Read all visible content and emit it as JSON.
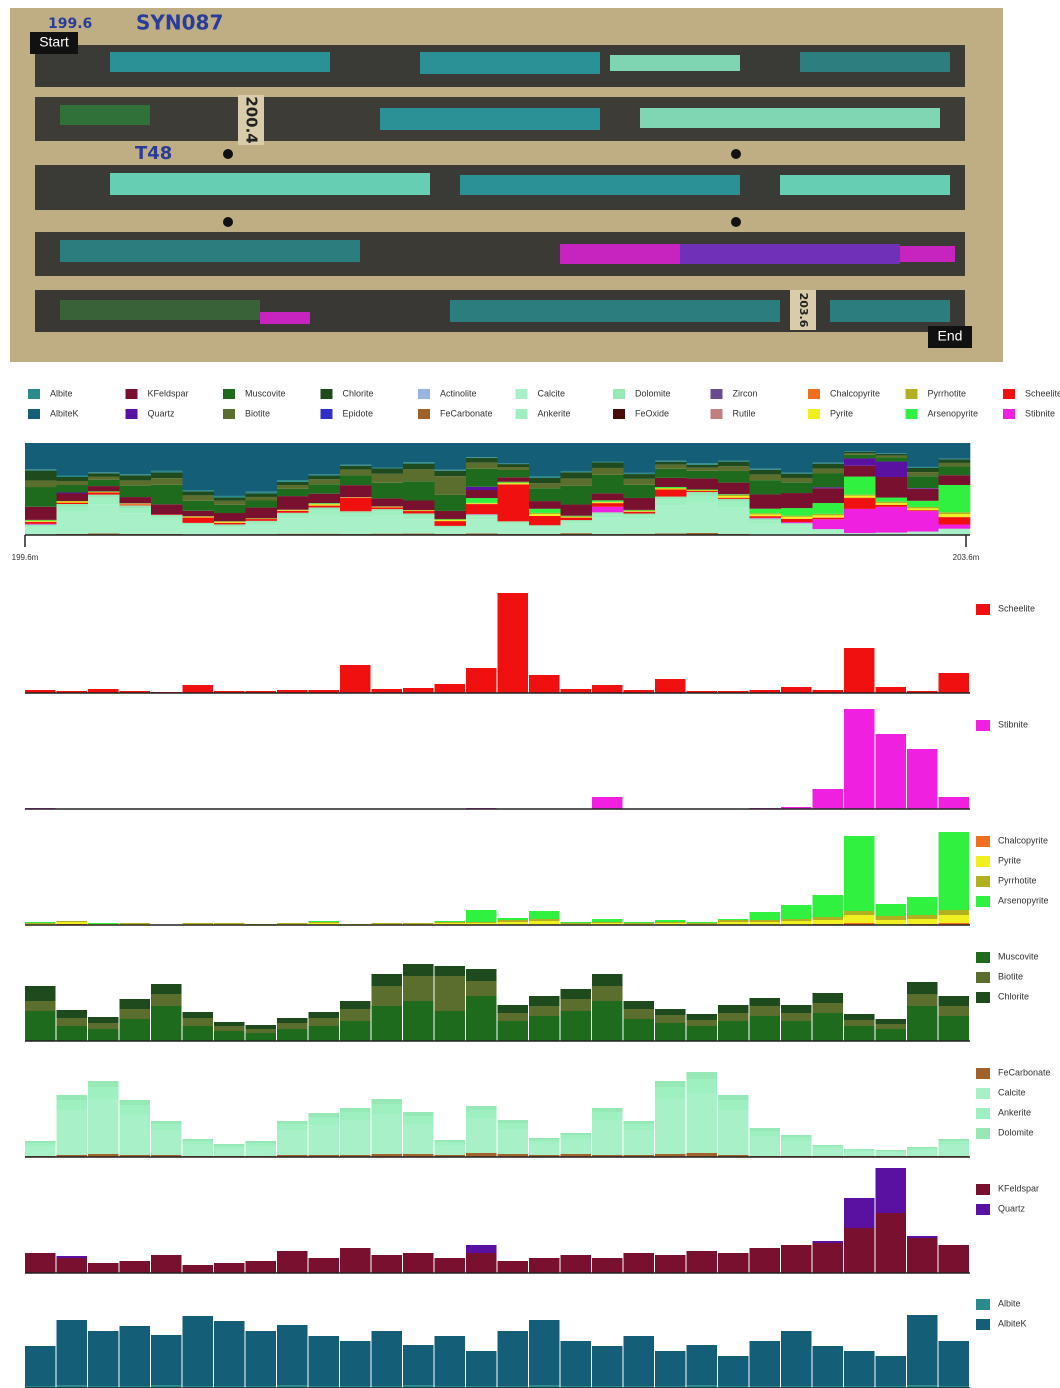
{
  "tray": {
    "start": "Start",
    "end": "End",
    "box_top": "199.6",
    "hole": "SYN087",
    "row_mark": "200.4",
    "tray_no": "T48",
    "box_end": "203.6"
  },
  "chart_data": [
    {
      "type": "stacked-composition",
      "x_start": "199.6m",
      "x_end": "203.6m",
      "legend": [
        {
          "name": "Albite",
          "color": "#2a8a8c"
        },
        {
          "name": "AlbiteK",
          "color": "#145e78"
        },
        {
          "name": "KFeldspar",
          "color": "#7a1030"
        },
        {
          "name": "Quartz",
          "color": "#5a10a0"
        },
        {
          "name": "Muscovite",
          "color": "#1e6b1e"
        },
        {
          "name": "Biotite",
          "color": "#5c6e2e"
        },
        {
          "name": "Chlorite",
          "color": "#1e4a1e"
        },
        {
          "name": "Epidote",
          "color": "#3030c8"
        },
        {
          "name": "Actinolite",
          "color": "#99b4e0"
        },
        {
          "name": "FeCarbonate",
          "color": "#a0622a"
        },
        {
          "name": "Calcite",
          "color": "#a8f0c8"
        },
        {
          "name": "Ankerite",
          "color": "#9ff0c0"
        },
        {
          "name": "Dolomite",
          "color": "#96e8b6"
        },
        {
          "name": "FeOxide",
          "color": "#4a0a0a"
        },
        {
          "name": "Zircon",
          "color": "#6a4a90"
        },
        {
          "name": "Rutile",
          "color": "#c08080"
        },
        {
          "name": "Chalcopyrite",
          "color": "#f07020"
        },
        {
          "name": "Pyrite",
          "color": "#f0f020"
        },
        {
          "name": "Pyrrhotite",
          "color": "#b0b020"
        },
        {
          "name": "Arsenopyrite",
          "color": "#30f040"
        },
        {
          "name": "Scheelite",
          "color": "#f01010"
        },
        {
          "name": "Stibnite",
          "color": "#f020e0"
        }
      ]
    },
    {
      "type": "bar",
      "ylim": [
        0,
        100
      ],
      "series": [
        {
          "name": "Scheelite",
          "color": "#f01010",
          "values": [
            3,
            2,
            4,
            2,
            1,
            8,
            2,
            2,
            3,
            3,
            28,
            4,
            5,
            9,
            25,
            100,
            18,
            4,
            8,
            3,
            14,
            2,
            2,
            3,
            6,
            3,
            45,
            6,
            2,
            20
          ]
        }
      ]
    },
    {
      "type": "bar",
      "ylim": [
        0,
        100
      ],
      "series": [
        {
          "name": "Stibnite",
          "color": "#f020e0",
          "values": [
            1,
            0,
            0,
            0,
            0,
            0,
            0,
            0,
            0,
            0,
            0,
            0,
            0,
            0,
            1,
            0,
            0,
            0,
            12,
            0,
            0,
            0,
            0,
            1,
            2,
            20,
            100,
            75,
            60,
            12
          ]
        }
      ]
    },
    {
      "type": "bar",
      "ylim": [
        0,
        100
      ],
      "series": [
        {
          "name": "Chalcopyrite",
          "color": "#f07020",
          "values": [
            0,
            1,
            0,
            0,
            0,
            0,
            0,
            0,
            0,
            0,
            0,
            0,
            0,
            0,
            0,
            0,
            0,
            0,
            0,
            0,
            0,
            0,
            0,
            0,
            0,
            1,
            2,
            0,
            1,
            2
          ]
        },
        {
          "name": "Pyrite",
          "color": "#f0f020",
          "values": [
            1,
            2,
            1,
            1,
            0,
            1,
            1,
            0,
            1,
            2,
            1,
            1,
            1,
            2,
            2,
            3,
            4,
            1,
            2,
            1,
            2,
            1,
            3,
            3,
            4,
            4,
            8,
            5,
            5,
            8
          ]
        },
        {
          "name": "Pyrrhotite",
          "color": "#b0b020",
          "values": [
            1,
            1,
            0,
            1,
            0,
            1,
            1,
            1,
            1,
            1,
            0,
            1,
            1,
            1,
            1,
            2,
            2,
            1,
            1,
            1,
            1,
            1,
            2,
            2,
            2,
            3,
            4,
            4,
            4,
            5
          ]
        },
        {
          "name": "Arsenopyrite",
          "color": "#30f040",
          "values": [
            1,
            0,
            1,
            0,
            0,
            0,
            0,
            0,
            0,
            1,
            0,
            0,
            0,
            1,
            12,
            2,
            8,
            1,
            3,
            1,
            2,
            1,
            1,
            8,
            14,
            22,
            75,
            12,
            18,
            78
          ]
        }
      ]
    },
    {
      "type": "bar",
      "ylim": [
        0,
        100
      ],
      "series": [
        {
          "name": "Muscovite",
          "color": "#1e6b1e",
          "values": [
            30,
            15,
            12,
            22,
            35,
            15,
            10,
            8,
            12,
            15,
            20,
            35,
            40,
            30,
            45,
            20,
            25,
            30,
            40,
            22,
            18,
            15,
            20,
            25,
            20,
            28,
            15,
            12,
            35,
            25
          ]
        },
        {
          "name": "Biotite",
          "color": "#5c6e2e",
          "values": [
            10,
            8,
            6,
            10,
            12,
            8,
            5,
            4,
            6,
            8,
            12,
            20,
            25,
            35,
            15,
            8,
            10,
            12,
            15,
            10,
            8,
            6,
            8,
            10,
            8,
            10,
            6,
            5,
            12,
            10
          ]
        },
        {
          "name": "Chlorite",
          "color": "#1e4a1e",
          "values": [
            15,
            8,
            6,
            10,
            10,
            6,
            4,
            4,
            5,
            6,
            8,
            12,
            12,
            10,
            12,
            8,
            10,
            10,
            12,
            8,
            6,
            6,
            8,
            8,
            8,
            10,
            6,
            5,
            12,
            10
          ]
        }
      ]
    },
    {
      "type": "bar",
      "ylim": [
        0,
        100
      ],
      "series": [
        {
          "name": "FeCarbonate",
          "color": "#a0622a",
          "values": [
            1,
            2,
            3,
            2,
            2,
            1,
            1,
            1,
            2,
            2,
            2,
            3,
            3,
            2,
            4,
            3,
            2,
            3,
            2,
            2,
            3,
            4,
            2,
            1,
            1,
            1,
            1,
            1,
            1,
            1
          ]
        },
        {
          "name": "Calcite",
          "color": "#a8f0c8",
          "values": [
            10,
            45,
            55,
            40,
            25,
            12,
            8,
            10,
            25,
            30,
            35,
            40,
            30,
            10,
            35,
            25,
            12,
            15,
            35,
            25,
            55,
            60,
            45,
            20,
            15,
            8,
            5,
            4,
            6,
            12
          ]
        },
        {
          "name": "Ankerite",
          "color": "#9ff0c0",
          "values": [
            3,
            10,
            12,
            10,
            6,
            3,
            2,
            3,
            6,
            8,
            8,
            10,
            8,
            3,
            8,
            6,
            3,
            4,
            8,
            6,
            12,
            14,
            10,
            5,
            4,
            2,
            1,
            1,
            2,
            3
          ]
        },
        {
          "name": "Dolomite",
          "color": "#96e8b6",
          "values": [
            2,
            5,
            6,
            5,
            3,
            2,
            2,
            2,
            3,
            4,
            4,
            5,
            4,
            2,
            4,
            3,
            2,
            2,
            4,
            3,
            6,
            7,
            5,
            3,
            2,
            1,
            1,
            1,
            1,
            2
          ]
        }
      ]
    },
    {
      "type": "bar",
      "ylim": [
        0,
        100
      ],
      "series": [
        {
          "name": "KFeldspar",
          "color": "#7a1030",
          "values": [
            20,
            15,
            10,
            12,
            18,
            8,
            10,
            12,
            22,
            15,
            25,
            18,
            20,
            15,
            20,
            12,
            15,
            18,
            15,
            20,
            18,
            22,
            20,
            25,
            28,
            30,
            45,
            60,
            35,
            28
          ]
        },
        {
          "name": "Quartz",
          "color": "#5a10a0",
          "values": [
            0,
            2,
            0,
            0,
            0,
            0,
            0,
            0,
            0,
            0,
            0,
            0,
            0,
            0,
            8,
            0,
            0,
            0,
            0,
            0,
            0,
            0,
            0,
            0,
            0,
            2,
            30,
            45,
            2,
            0
          ]
        }
      ]
    },
    {
      "type": "bar",
      "ylim": [
        0,
        100
      ],
      "series": [
        {
          "name": "Albite",
          "color": "#2a8a8c",
          "values": [
            2,
            3,
            2,
            2,
            3,
            2,
            2,
            2,
            3,
            2,
            2,
            2,
            3,
            2,
            2,
            2,
            3,
            2,
            2,
            2,
            2,
            3,
            2,
            2,
            2,
            2,
            2,
            2,
            3,
            2
          ]
        },
        {
          "name": "AlbiteK",
          "color": "#145e78",
          "values": [
            40,
            65,
            55,
            60,
            50,
            70,
            65,
            55,
            60,
            50,
            45,
            55,
            40,
            50,
            35,
            55,
            65,
            45,
            40,
            50,
            35,
            40,
            30,
            45,
            55,
            40,
            35,
            30,
            70,
            45
          ]
        }
      ]
    }
  ]
}
